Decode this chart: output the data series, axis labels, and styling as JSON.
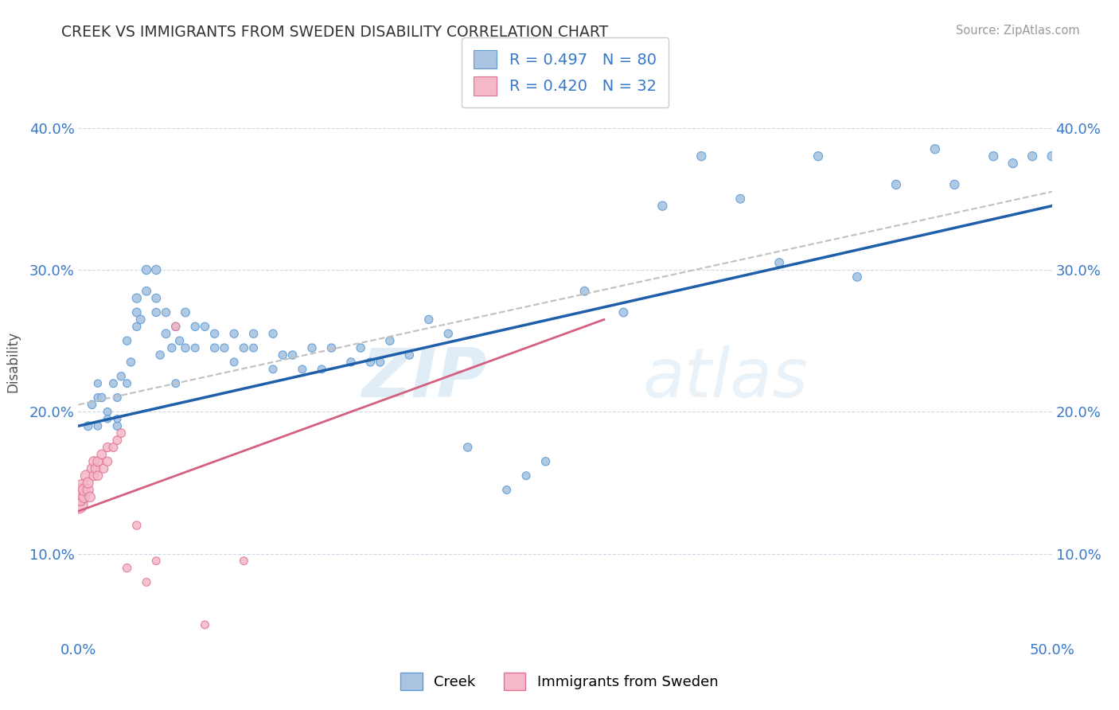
{
  "title": "CREEK VS IMMIGRANTS FROM SWEDEN DISABILITY CORRELATION CHART",
  "source": "Source: ZipAtlas.com",
  "ylabel": "Disability",
  "xlim": [
    0,
    0.5
  ],
  "ylim": [
    0.04,
    0.43
  ],
  "x_ticks": [
    0.0,
    0.05,
    0.1,
    0.15,
    0.2,
    0.25,
    0.3,
    0.35,
    0.4,
    0.45,
    0.5
  ],
  "y_ticks": [
    0.1,
    0.2,
    0.3,
    0.4
  ],
  "y_tick_labels": [
    "10.0%",
    "20.0%",
    "30.0%",
    "40.0%"
  ],
  "creek_color": "#aac4e2",
  "creek_edge_color": "#5b9bd5",
  "sweden_color": "#f4b8c8",
  "sweden_edge_color": "#e07090",
  "trend_blue": "#1f5faa",
  "trend_pink": "#d46080",
  "trend_gray": "#c0c0c0",
  "legend_label1": "Creek",
  "legend_label2": "Immigrants from Sweden",
  "watermark": "ZIPatlas",
  "background_color": "#ffffff",
  "creek_x": [
    0.005,
    0.007,
    0.01,
    0.01,
    0.01,
    0.012,
    0.015,
    0.015,
    0.018,
    0.02,
    0.02,
    0.02,
    0.022,
    0.025,
    0.025,
    0.027,
    0.03,
    0.03,
    0.03,
    0.032,
    0.035,
    0.035,
    0.04,
    0.04,
    0.04,
    0.042,
    0.045,
    0.045,
    0.048,
    0.05,
    0.05,
    0.052,
    0.055,
    0.055,
    0.06,
    0.06,
    0.065,
    0.07,
    0.07,
    0.075,
    0.08,
    0.08,
    0.085,
    0.09,
    0.09,
    0.1,
    0.1,
    0.105,
    0.11,
    0.115,
    0.12,
    0.125,
    0.13,
    0.14,
    0.145,
    0.15,
    0.155,
    0.16,
    0.17,
    0.18,
    0.19,
    0.2,
    0.22,
    0.23,
    0.24,
    0.26,
    0.28,
    0.3,
    0.32,
    0.34,
    0.36,
    0.38,
    0.4,
    0.42,
    0.44,
    0.45,
    0.47,
    0.48,
    0.49,
    0.5
  ],
  "creek_y": [
    0.19,
    0.205,
    0.21,
    0.19,
    0.22,
    0.21,
    0.2,
    0.195,
    0.22,
    0.19,
    0.21,
    0.195,
    0.225,
    0.22,
    0.25,
    0.235,
    0.27,
    0.28,
    0.26,
    0.265,
    0.3,
    0.285,
    0.28,
    0.27,
    0.3,
    0.24,
    0.27,
    0.255,
    0.245,
    0.26,
    0.22,
    0.25,
    0.27,
    0.245,
    0.26,
    0.245,
    0.26,
    0.245,
    0.255,
    0.245,
    0.255,
    0.235,
    0.245,
    0.255,
    0.245,
    0.255,
    0.23,
    0.24,
    0.24,
    0.23,
    0.245,
    0.23,
    0.245,
    0.235,
    0.245,
    0.235,
    0.235,
    0.25,
    0.24,
    0.265,
    0.255,
    0.175,
    0.145,
    0.155,
    0.165,
    0.285,
    0.27,
    0.345,
    0.38,
    0.35,
    0.305,
    0.38,
    0.295,
    0.36,
    0.385,
    0.36,
    0.38,
    0.375,
    0.38,
    0.38
  ],
  "sweden_x": [
    0.0,
    0.0,
    0.001,
    0.001,
    0.002,
    0.002,
    0.003,
    0.003,
    0.004,
    0.005,
    0.005,
    0.006,
    0.007,
    0.008,
    0.008,
    0.009,
    0.01,
    0.01,
    0.012,
    0.013,
    0.015,
    0.015,
    0.018,
    0.02,
    0.022,
    0.025,
    0.03,
    0.035,
    0.04,
    0.05,
    0.065,
    0.085
  ],
  "sweden_y": [
    0.14,
    0.135,
    0.145,
    0.138,
    0.142,
    0.148,
    0.14,
    0.145,
    0.155,
    0.145,
    0.15,
    0.14,
    0.16,
    0.165,
    0.155,
    0.16,
    0.165,
    0.155,
    0.17,
    0.16,
    0.175,
    0.165,
    0.175,
    0.18,
    0.185,
    0.09,
    0.12,
    0.08,
    0.095,
    0.26,
    0.05,
    0.095
  ],
  "creek_sizes": [
    60,
    55,
    50,
    50,
    45,
    55,
    50,
    45,
    50,
    55,
    50,
    45,
    55,
    50,
    55,
    55,
    60,
    65,
    55,
    60,
    65,
    60,
    60,
    55,
    65,
    55,
    55,
    60,
    55,
    55,
    50,
    55,
    60,
    55,
    55,
    50,
    55,
    55,
    55,
    55,
    55,
    50,
    55,
    55,
    50,
    55,
    50,
    55,
    55,
    50,
    55,
    50,
    55,
    55,
    55,
    55,
    55,
    55,
    55,
    55,
    55,
    55,
    50,
    50,
    55,
    60,
    60,
    65,
    65,
    60,
    60,
    65,
    60,
    65,
    65,
    65,
    65,
    65,
    65,
    65
  ],
  "sweden_sizes": [
    300,
    280,
    120,
    110,
    130,
    125,
    100,
    110,
    95,
    90,
    90,
    80,
    80,
    80,
    75,
    75,
    75,
    70,
    70,
    65,
    65,
    65,
    60,
    60,
    60,
    55,
    55,
    50,
    50,
    55,
    50,
    50
  ],
  "blue_trend_x0": 0.0,
  "blue_trend_y0": 0.19,
  "blue_trend_x1": 0.5,
  "blue_trend_y1": 0.345,
  "gray_trend_x0": 0.0,
  "gray_trend_y0": 0.205,
  "gray_trend_x1": 0.5,
  "gray_trend_y1": 0.355,
  "pink_trend_x0": 0.0,
  "pink_trend_y0": 0.13,
  "pink_trend_x1": 0.27,
  "pink_trend_y1": 0.265
}
